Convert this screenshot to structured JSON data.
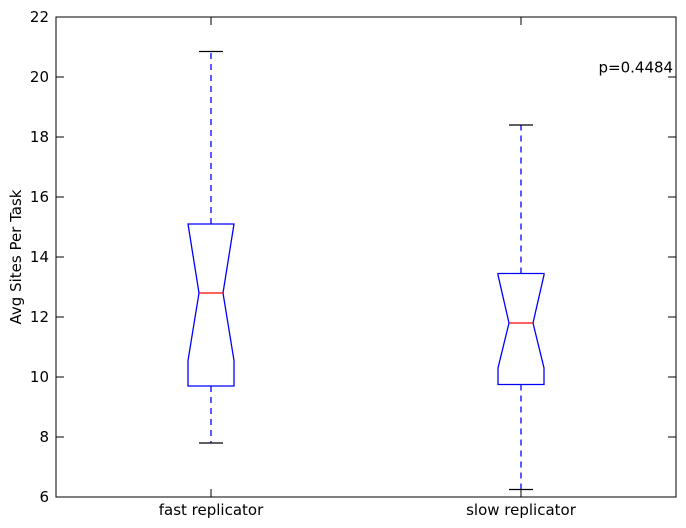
{
  "chart_data": {
    "type": "boxplot",
    "title": "",
    "xlabel": "",
    "ylabel": "Avg Sites Per Task",
    "ylim": [
      6,
      22
    ],
    "yticks": [
      6,
      8,
      10,
      12,
      14,
      16,
      18,
      20,
      22
    ],
    "notched": true,
    "grid": false,
    "categories": [
      "fast replicator",
      "slow replicator"
    ],
    "boxes": [
      {
        "category": "fast replicator",
        "whisker_low": 7.8,
        "q1": 9.7,
        "notch_low": 10.55,
        "median": 12.8,
        "notch_high": 15.1,
        "q3": 15.1,
        "whisker_high": 20.85
      },
      {
        "category": "slow replicator",
        "whisker_low": 6.25,
        "q1": 9.75,
        "notch_low": 10.3,
        "median": 11.8,
        "notch_high": 13.4,
        "q3": 13.45,
        "whisker_high": 18.4
      }
    ],
    "annotations": [
      {
        "text": "p=0.4484",
        "x": 2.25,
        "y": 20.15
      }
    ],
    "colors": {
      "box": "#0000ff",
      "median": "#ff0000",
      "whisker": "#0000ff",
      "cap": "#000000",
      "axes": "#000000"
    }
  }
}
